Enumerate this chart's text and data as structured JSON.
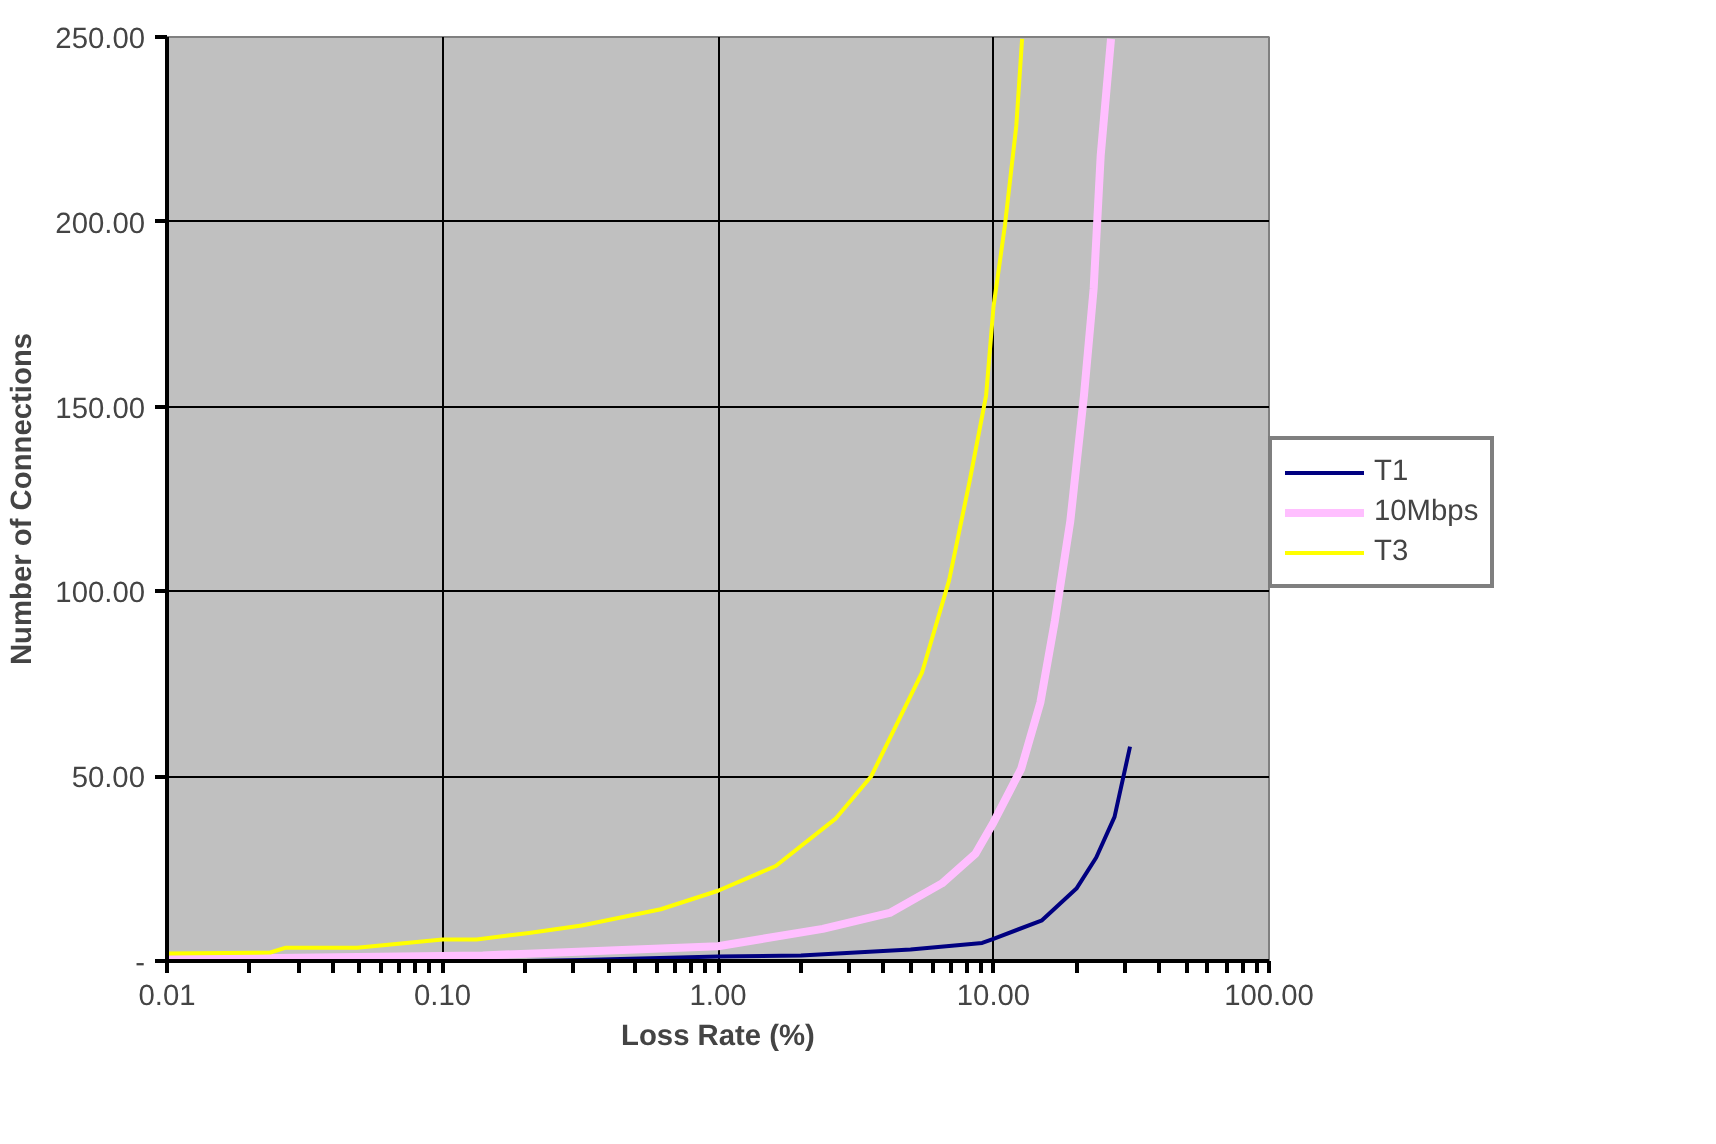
{
  "chart_data": {
    "type": "line",
    "xlabel": "Loss Rate (%)",
    "ylabel": "Number of Connections",
    "log": "x",
    "grid": true,
    "legend": "right",
    "line_style": "solid",
    "marker": "none",
    "xlim": [
      0.01,
      100
    ],
    "ylim": [
      0,
      250
    ],
    "xticks": [
      {
        "value": 0.01,
        "label": "0.01"
      },
      {
        "value": 0.1,
        "label": "0.10"
      },
      {
        "value": 1,
        "label": "1.00"
      },
      {
        "value": 10,
        "label": "10.00"
      },
      {
        "value": 100,
        "label": "100.00"
      }
    ],
    "yticks": [
      {
        "value": 0,
        "label": "-"
      },
      {
        "value": 50,
        "label": "50.00"
      },
      {
        "value": 100,
        "label": "100.00"
      },
      {
        "value": 150,
        "label": "150.00"
      },
      {
        "value": 200,
        "label": "200.00"
      },
      {
        "value": 250,
        "label": "250.00"
      }
    ],
    "series": [
      {
        "name": "T1",
        "color": "#000080",
        "x": [
          0.2,
          0.32,
          1.0,
          2.0,
          5.0,
          9.1,
          10,
          15,
          20,
          23.6,
          27.5,
          31.3
        ],
        "values": [
          0,
          0.3,
          1.2,
          1.5,
          3.1,
          4.9,
          6,
          11,
          19.6,
          28,
          39,
          58
        ]
      },
      {
        "name": "10Mbps",
        "color": "#ffbfff",
        "x": [
          0.01,
          0.14,
          0.45,
          1.0,
          2.4,
          4.2,
          6.5,
          8.6,
          10,
          12.6,
          14.8,
          16.7,
          19.0,
          21.3,
          23.1,
          24.5,
          26.7
        ],
        "values": [
          0.5,
          1.5,
          3,
          4,
          8.7,
          13,
          21,
          29,
          37.5,
          52,
          70,
          92,
          119,
          153,
          182,
          218,
          249.5
        ]
      },
      {
        "name": "T3",
        "color": "#ffff00",
        "x": [
          0.01,
          0.0237,
          0.027,
          0.049,
          0.1,
          0.133,
          0.206,
          0.32,
          0.62,
          1.0,
          1.62,
          2.68,
          3.6,
          5.5,
          6.9,
          8.2,
          9.4,
          10,
          11,
          12.1,
          12.7
        ],
        "values": [
          2,
          2.3,
          3.6,
          3.6,
          5.8,
          5.8,
          7.6,
          9.6,
          14,
          19,
          25.7,
          38.6,
          50,
          78,
          103,
          130,
          153,
          177,
          199,
          226,
          249.5
        ]
      }
    ]
  }
}
